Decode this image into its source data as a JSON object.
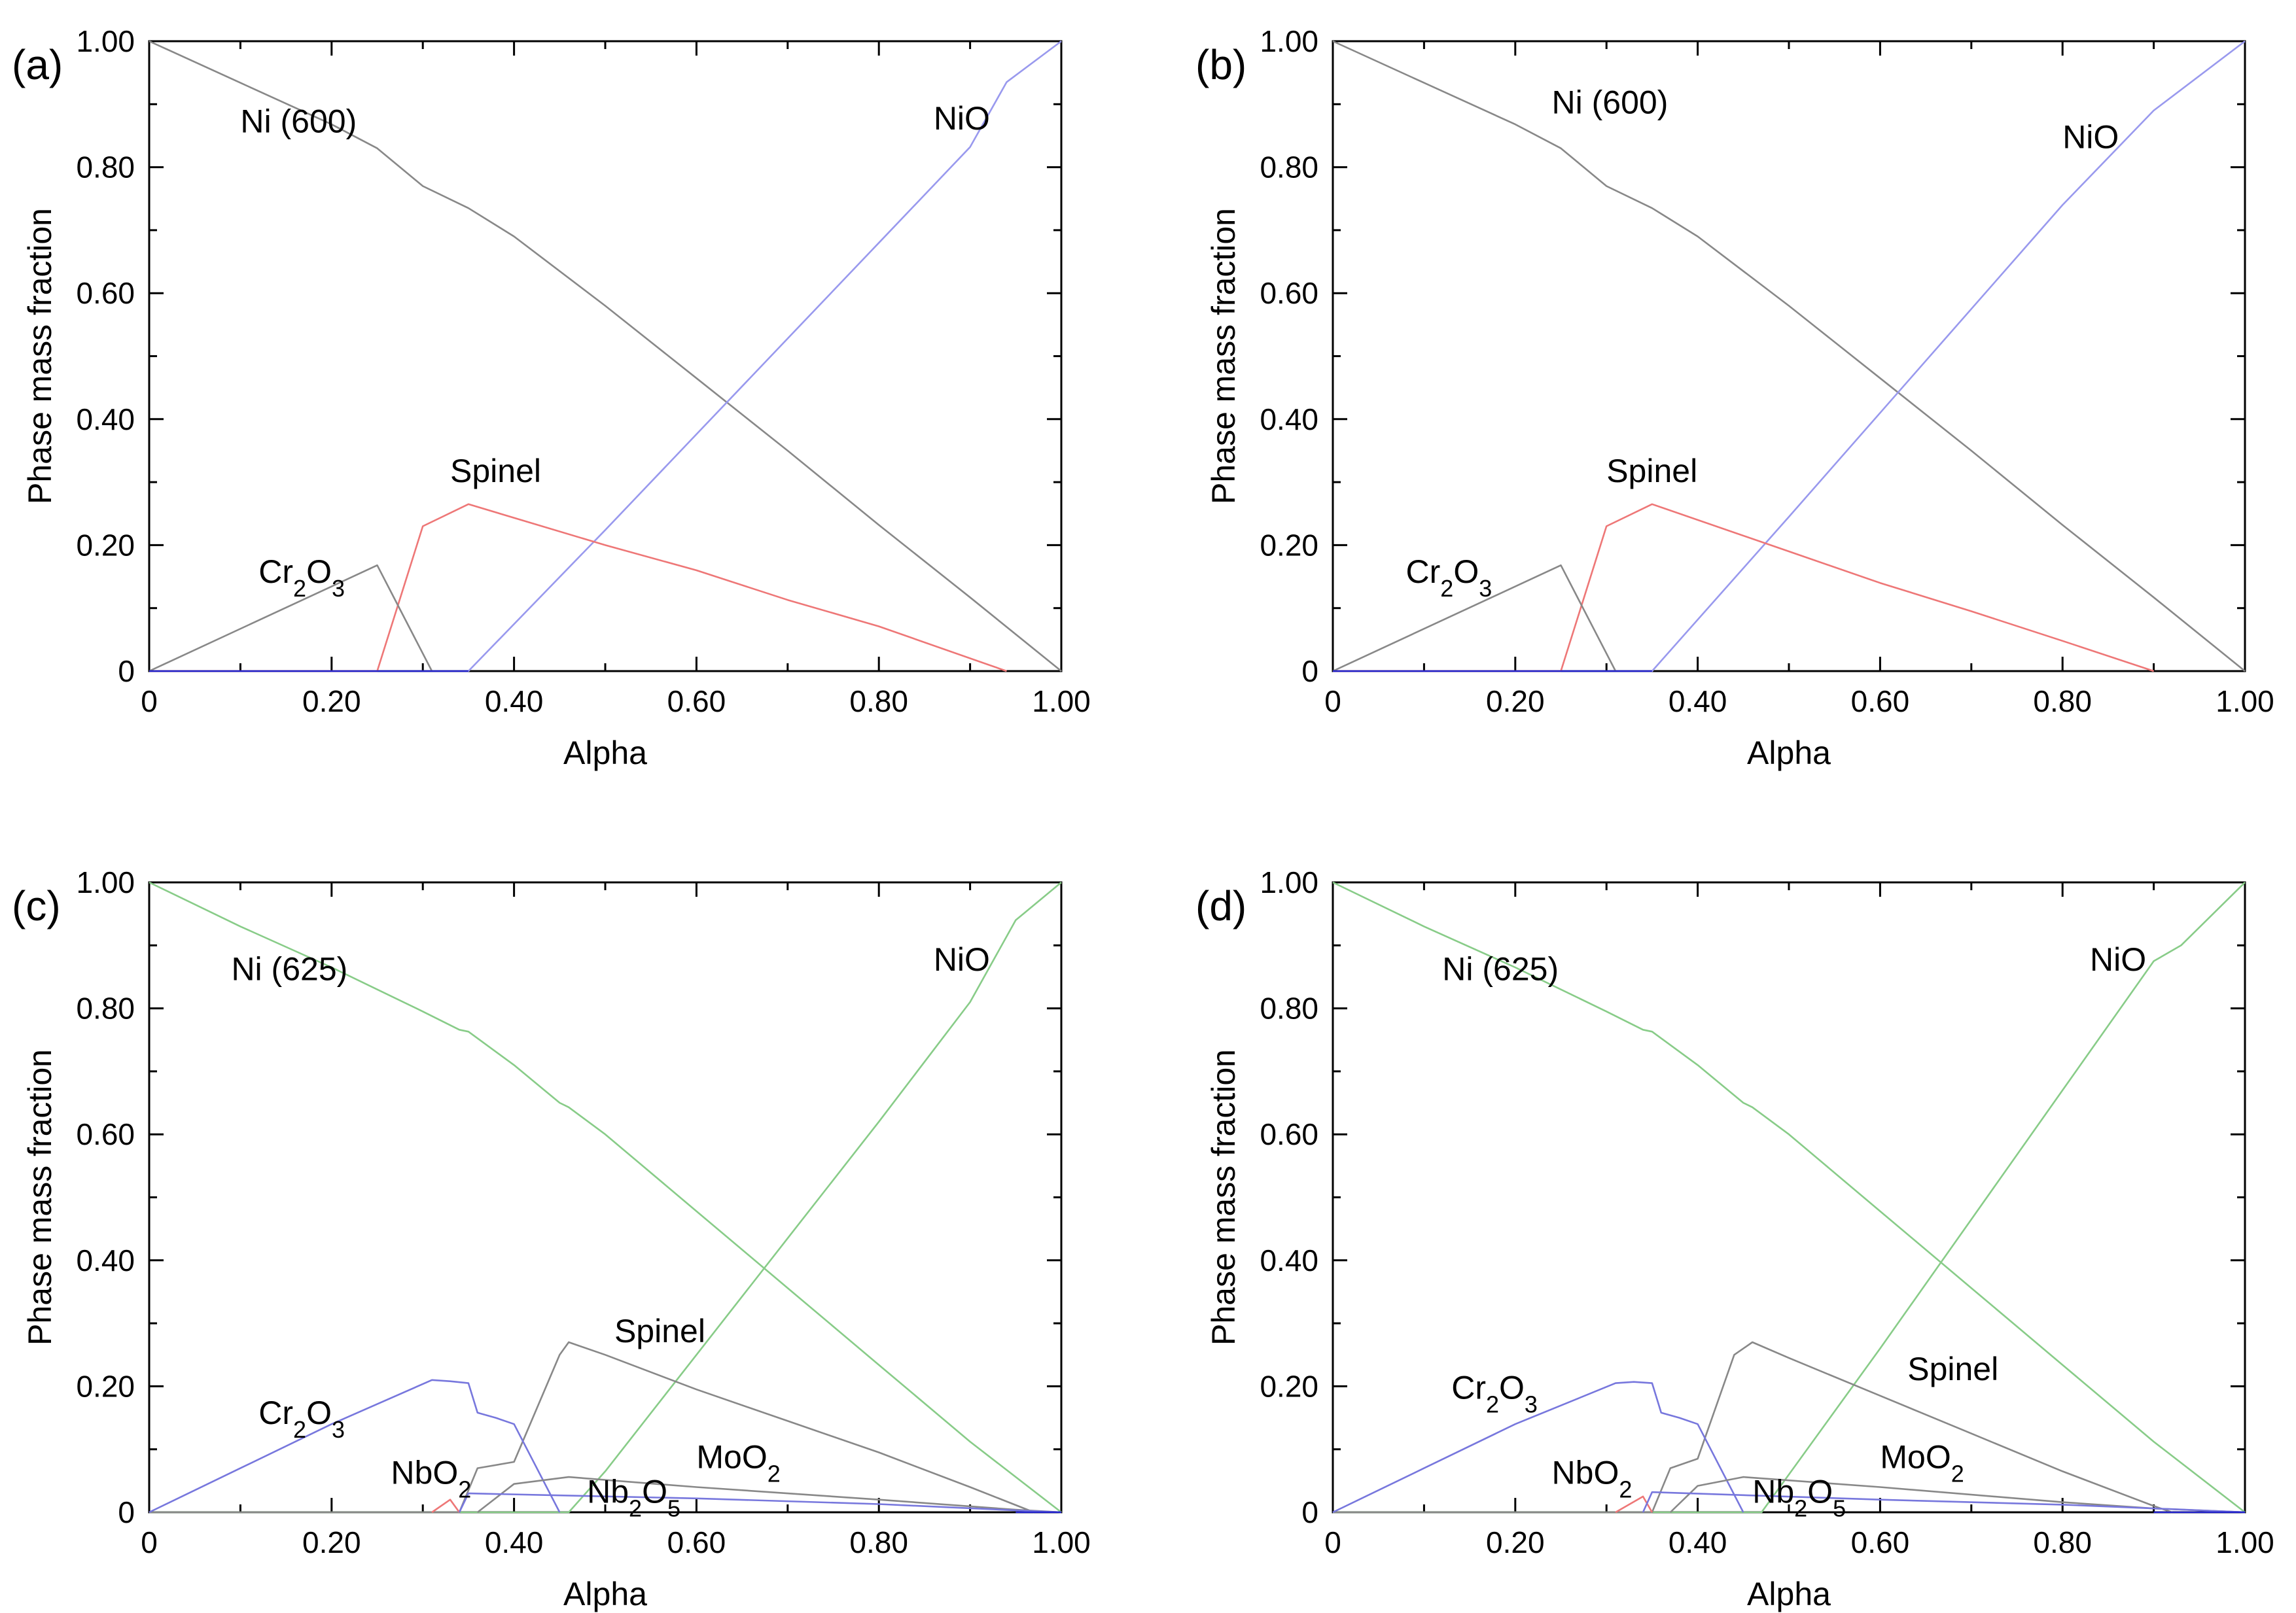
{
  "chart_data": [
    {
      "type": "line",
      "panel_label": "(a)",
      "xlabel": "Alpha",
      "ylabel": "Phase mass fraction",
      "xlim": [
        0,
        1
      ],
      "ylim": [
        0,
        1
      ],
      "x_ticks": [
        "0",
        "0.20",
        "0.40",
        "0.60",
        "0.80",
        "1.00"
      ],
      "y_ticks": [
        "0",
        "0.20",
        "0.40",
        "0.60",
        "0.80",
        "1.00"
      ],
      "grid": false,
      "series": [
        {
          "name": "Ni (600)",
          "color": "#888888",
          "x": [
            0,
            0.1,
            0.2,
            0.25,
            0.3,
            0.35,
            0.4,
            0.5,
            0.6,
            0.7,
            0.8,
            0.9,
            1.0
          ],
          "y": [
            1.0,
            0.934,
            0.868,
            0.83,
            0.77,
            0.735,
            0.69,
            0.58,
            0.465,
            0.35,
            0.232,
            0.117,
            0.0
          ],
          "label_at": [
            0.1,
            0.855
          ]
        },
        {
          "name": "NiO",
          "color": "#9999ee",
          "x": [
            0,
            0.35,
            0.5,
            0.6,
            0.7,
            0.8,
            0.9,
            0.94,
            1.0
          ],
          "y": [
            0,
            0,
            0.224,
            0.376,
            0.528,
            0.68,
            0.832,
            0.935,
            1.0
          ],
          "label_at": [
            0.86,
            0.86
          ]
        },
        {
          "name": "Spinel",
          "color": "#ee7777",
          "x": [
            0,
            0.25,
            0.3,
            0.35,
            0.5,
            0.6,
            0.7,
            0.8,
            0.94
          ],
          "y": [
            0,
            0,
            0.23,
            0.265,
            0.2,
            0.16,
            0.113,
            0.071,
            0.0
          ],
          "label_at": [
            0.33,
            0.3
          ]
        },
        {
          "name": "Cr2O3",
          "color": "#888888",
          "x": [
            0,
            0.25,
            0.31
          ],
          "y": [
            0,
            0.168,
            0
          ],
          "label_at": [
            0.12,
            0.14
          ]
        },
        {
          "name": "",
          "color": "#2222cc",
          "x": [
            0,
            0.35
          ],
          "y": [
            0,
            0
          ]
        }
      ]
    },
    {
      "type": "line",
      "panel_label": "(b)",
      "xlabel": "Alpha",
      "ylabel": "Phase mass fraction",
      "xlim": [
        0,
        1
      ],
      "ylim": [
        0,
        1
      ],
      "x_ticks": [
        "0",
        "0.20",
        "0.40",
        "0.60",
        "0.80",
        "1.00"
      ],
      "y_ticks": [
        "0",
        "0.20",
        "0.40",
        "0.60",
        "0.80",
        "1.00"
      ],
      "grid": false,
      "series": [
        {
          "name": "Ni (600)",
          "color": "#888888",
          "x": [
            0,
            0.1,
            0.2,
            0.25,
            0.3,
            0.35,
            0.4,
            0.5,
            0.6,
            0.7,
            0.8,
            0.9,
            1.0
          ],
          "y": [
            1.0,
            0.934,
            0.868,
            0.83,
            0.77,
            0.735,
            0.69,
            0.58,
            0.465,
            0.35,
            0.232,
            0.117,
            0.0
          ],
          "label_at": [
            0.24,
            0.885
          ]
        },
        {
          "name": "NiO",
          "color": "#9999ee",
          "x": [
            0,
            0.35,
            0.5,
            0.6,
            0.7,
            0.8,
            0.9,
            1.0
          ],
          "y": [
            0,
            0,
            0.245,
            0.41,
            0.575,
            0.74,
            0.89,
            1.0
          ],
          "label_at": [
            0.8,
            0.83
          ]
        },
        {
          "name": "Spinel",
          "color": "#ee7777",
          "x": [
            0,
            0.25,
            0.3,
            0.35,
            0.5,
            0.6,
            0.7,
            0.8,
            0.9
          ],
          "y": [
            0,
            0,
            0.23,
            0.265,
            0.19,
            0.14,
            0.095,
            0.048,
            0.0
          ],
          "label_at": [
            0.3,
            0.3
          ]
        },
        {
          "name": "Cr2O3",
          "color": "#888888",
          "x": [
            0,
            0.25,
            0.31
          ],
          "y": [
            0,
            0.168,
            0
          ],
          "label_at": [
            0.08,
            0.14
          ]
        },
        {
          "name": "",
          "color": "#2222cc",
          "x": [
            0,
            0.35
          ],
          "y": [
            0,
            0
          ]
        }
      ]
    },
    {
      "type": "line",
      "panel_label": "(c)",
      "xlabel": "Alpha",
      "ylabel": "Phase mass fraction",
      "xlim": [
        0,
        1
      ],
      "ylim": [
        0,
        1
      ],
      "x_ticks": [
        "0",
        "0.20",
        "0.40",
        "0.60",
        "0.80",
        "1.00"
      ],
      "y_ticks": [
        "0",
        "0.20",
        "0.40",
        "0.60",
        "0.80",
        "1.00"
      ],
      "grid": false,
      "series": [
        {
          "name": "Ni (625)",
          "color": "#88cc88",
          "x": [
            0,
            0.1,
            0.2,
            0.3,
            0.34,
            0.35,
            0.4,
            0.45,
            0.46,
            0.5,
            0.6,
            0.7,
            0.8,
            0.9,
            1.0
          ],
          "y": [
            1.0,
            0.93,
            0.865,
            0.795,
            0.766,
            0.763,
            0.71,
            0.65,
            0.643,
            0.6,
            0.478,
            0.356,
            0.234,
            0.112,
            0.0
          ],
          "label_at": [
            0.09,
            0.845
          ]
        },
        {
          "name": "NiO",
          "color": "#88cc88",
          "x": [
            0,
            0.46,
            0.5,
            0.6,
            0.7,
            0.8,
            0.9,
            0.95,
            1.0
          ],
          "y": [
            0,
            0,
            0.065,
            0.25,
            0.435,
            0.62,
            0.81,
            0.94,
            1.0
          ],
          "label_at": [
            0.86,
            0.86
          ]
        },
        {
          "name": "Spinel",
          "color": "#888888",
          "x": [
            0,
            0.34,
            0.36,
            0.4,
            0.45,
            0.46,
            0.5,
            0.6,
            0.7,
            0.8,
            0.9,
            0.97
          ],
          "y": [
            0,
            0,
            0.07,
            0.08,
            0.25,
            0.27,
            0.25,
            0.195,
            0.145,
            0.095,
            0.04,
            0.0
          ],
          "label_at": [
            0.51,
            0.27
          ]
        },
        {
          "name": "Cr2O3",
          "color": "#7777dd",
          "x": [
            0,
            0.1,
            0.2,
            0.31,
            0.33,
            0.35,
            0.36,
            0.38,
            0.4,
            0.45
          ],
          "y": [
            0,
            0.07,
            0.14,
            0.21,
            0.208,
            0.205,
            0.158,
            0.15,
            0.14,
            0.0
          ],
          "label_at": [
            0.12,
            0.14
          ]
        },
        {
          "name": "NbO2",
          "color": "#ee7777",
          "x": [
            0.31,
            0.33,
            0.34
          ],
          "y": [
            0,
            0.02,
            0.0
          ],
          "label_at": [
            0.265,
            0.045
          ]
        },
        {
          "name": "MoO2",
          "color": "#888888",
          "x": [
            0.36,
            0.4,
            0.46,
            0.6,
            0.8,
            0.95,
            1.0
          ],
          "y": [
            0,
            0.045,
            0.056,
            0.04,
            0.02,
            0.004,
            0.0
          ],
          "label_at": [
            0.6,
            0.07
          ]
        },
        {
          "name": "Nb2O5",
          "color": "#7777dd",
          "x": [
            0.34,
            0.35,
            0.6,
            0.8,
            0.95,
            1.0
          ],
          "y": [
            0,
            0.03,
            0.022,
            0.013,
            0.003,
            0.0
          ],
          "label_at": [
            0.48,
            0.015
          ]
        },
        {
          "name": "",
          "color": "#2222cc",
          "x": [
            0.95,
            1.0
          ],
          "y": [
            0,
            0
          ]
        }
      ]
    },
    {
      "type": "line",
      "panel_label": "(d)",
      "xlabel": "Alpha",
      "ylabel": "Phase mass fraction",
      "xlim": [
        0,
        1
      ],
      "ylim": [
        0,
        1
      ],
      "x_ticks": [
        "0",
        "0.20",
        "0.40",
        "0.60",
        "0.80",
        "1.00"
      ],
      "y_ticks": [
        "0",
        "0.20",
        "0.40",
        "0.60",
        "0.80",
        "1.00"
      ],
      "grid": false,
      "series": [
        {
          "name": "Ni (625)",
          "color": "#88cc88",
          "x": [
            0,
            0.1,
            0.2,
            0.3,
            0.34,
            0.35,
            0.4,
            0.45,
            0.46,
            0.5,
            0.6,
            0.7,
            0.8,
            0.9,
            1.0
          ],
          "y": [
            1.0,
            0.93,
            0.865,
            0.795,
            0.766,
            0.763,
            0.71,
            0.65,
            0.643,
            0.6,
            0.478,
            0.356,
            0.234,
            0.112,
            0.0
          ],
          "label_at": [
            0.12,
            0.845
          ]
        },
        {
          "name": "NiO",
          "color": "#88cc88",
          "x": [
            0,
            0.47,
            0.5,
            0.6,
            0.7,
            0.8,
            0.9,
            0.93,
            1.0
          ],
          "y": [
            0,
            0,
            0.06,
            0.26,
            0.465,
            0.67,
            0.875,
            0.9,
            1.0
          ],
          "label_at": [
            0.83,
            0.86
          ]
        },
        {
          "name": "Spinel",
          "color": "#888888",
          "x": [
            0,
            0.35,
            0.37,
            0.4,
            0.44,
            0.46,
            0.5,
            0.6,
            0.7,
            0.8,
            0.9,
            0.92
          ],
          "y": [
            0,
            0,
            0.07,
            0.085,
            0.25,
            0.27,
            0.245,
            0.185,
            0.125,
            0.065,
            0.01,
            0.0
          ],
          "label_at": [
            0.63,
            0.21
          ]
        },
        {
          "name": "Cr2O3",
          "color": "#7777dd",
          "x": [
            0,
            0.1,
            0.2,
            0.31,
            0.33,
            0.35,
            0.36,
            0.38,
            0.4,
            0.45
          ],
          "y": [
            0,
            0.07,
            0.14,
            0.205,
            0.207,
            0.205,
            0.158,
            0.15,
            0.14,
            0.0
          ],
          "label_at": [
            0.13,
            0.18
          ]
        },
        {
          "name": "NbO2",
          "color": "#ee7777",
          "x": [
            0.31,
            0.34,
            0.35
          ],
          "y": [
            0,
            0.025,
            0.0
          ],
          "label_at": [
            0.24,
            0.045
          ]
        },
        {
          "name": "MoO2",
          "color": "#888888",
          "x": [
            0.37,
            0.4,
            0.45,
            0.6,
            0.8,
            0.9,
            1.0
          ],
          "y": [
            0,
            0.042,
            0.056,
            0.04,
            0.016,
            0.006,
            0.0
          ],
          "label_at": [
            0.6,
            0.07
          ]
        },
        {
          "name": "Nb2O5",
          "color": "#7777dd",
          "x": [
            0.34,
            0.35,
            0.6,
            0.8,
            0.92,
            1.0
          ],
          "y": [
            0,
            0.032,
            0.02,
            0.012,
            0.005,
            0.0
          ],
          "label_at": [
            0.46,
            0.015
          ]
        },
        {
          "name": "",
          "color": "#2222cc",
          "x": [
            0.9,
            1.0
          ],
          "y": [
            0,
            0
          ]
        }
      ]
    }
  ]
}
